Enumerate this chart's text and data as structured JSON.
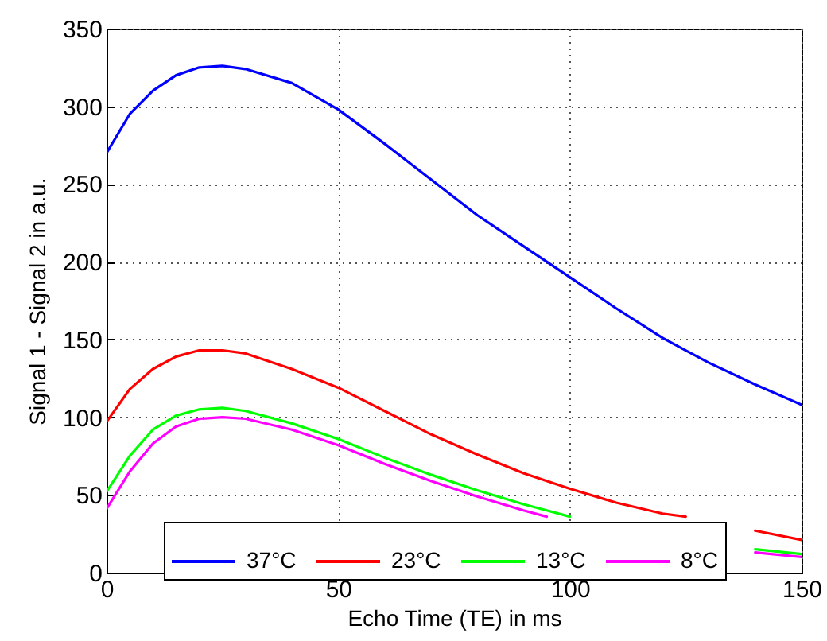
{
  "chart_data": {
    "type": "line",
    "xlabel": "Echo Time (TE) in ms",
    "ylabel": "Signal 1 - Signal 2 in a.u.",
    "x": [
      0,
      5,
      10,
      15,
      20,
      25,
      30,
      40,
      50,
      60,
      70,
      80,
      90,
      95,
      100,
      110,
      120,
      125,
      130,
      140,
      150
    ],
    "series": [
      {
        "name": "37°C",
        "color": "#0000ff",
        "values": [
          270,
          295,
          310,
          320,
          325,
          326,
          324,
          315,
          298,
          276,
          253,
          230,
          210,
          200,
          190,
          170,
          151,
          143,
          135,
          121,
          108
        ]
      },
      {
        "name": "23°C",
        "color": "#ff0000",
        "values": [
          97,
          118,
          131,
          139,
          143,
          143,
          141,
          131,
          119,
          104,
          89,
          76,
          64,
          59,
          54,
          45,
          38,
          36,
          null,
          27,
          21
        ]
      },
      {
        "name": "13°C",
        "color": "#00ff00",
        "values": [
          52,
          75,
          92,
          101,
          105,
          106,
          104,
          96,
          86,
          74,
          63,
          53,
          44,
          40,
          36,
          null,
          null,
          null,
          null,
          15,
          12
        ]
      },
      {
        "name": "8°C",
        "color": "#ff00ff",
        "values": [
          41,
          65,
          83,
          94,
          99,
          100,
          99,
          92,
          82,
          70,
          59,
          49,
          40,
          36,
          null,
          null,
          null,
          null,
          null,
          13,
          10
        ]
      }
    ],
    "xlim": [
      0,
      150
    ],
    "xticks": [
      0,
      50,
      100,
      150
    ],
    "ylim": [
      0,
      350
    ],
    "yticks": [
      0,
      50,
      100,
      150,
      200,
      250,
      300,
      350
    ],
    "grid": true,
    "legend": "bottom",
    "line_style": "solid"
  }
}
